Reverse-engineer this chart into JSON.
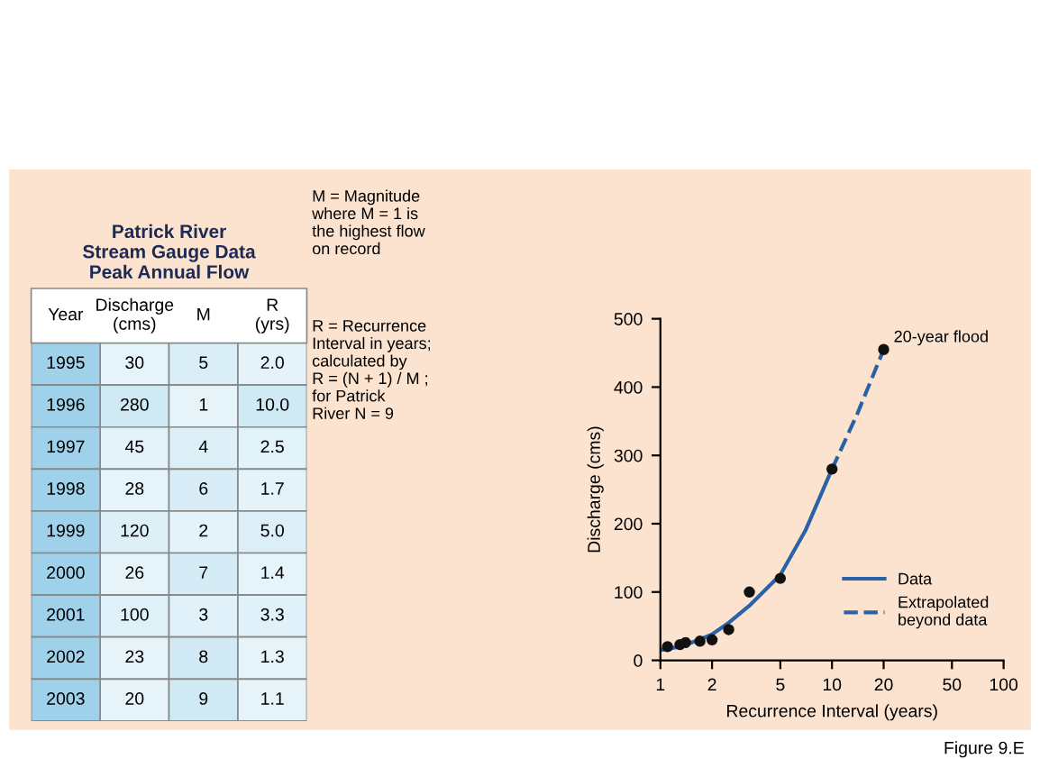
{
  "chart_data": [
    {
      "type": "heatmap",
      "title": "Patrick River\nStream Gauge Data\nPeak Annual Flow",
      "ylabel": "Year",
      "categories": [
        "Discharge\n(cms)",
        "M",
        "R\n(yrs)"
      ],
      "y_categories": [
        "1995",
        "1996",
        "1997",
        "1998",
        "1999",
        "2000",
        "2001",
        "2002",
        "2003"
      ],
      "cells": [
        [
          30,
          5,
          2.0
        ],
        [
          280,
          1,
          10.0
        ],
        [
          45,
          4,
          2.5
        ],
        [
          28,
          6,
          1.7
        ],
        [
          120,
          2,
          5.0
        ],
        [
          26,
          7,
          1.4
        ],
        [
          100,
          3,
          3.3
        ],
        [
          23,
          8,
          1.3
        ],
        [
          20,
          9,
          1.1
        ]
      ],
      "cell_labels": [
        [
          "30",
          "5",
          "2.0"
        ],
        [
          "280",
          "1",
          "10.0"
        ],
        [
          "45",
          "4",
          "2.5"
        ],
        [
          "28",
          "6",
          "1.7"
        ],
        [
          "120",
          "2",
          "5.0"
        ],
        [
          "26",
          "7",
          "1.4"
        ],
        [
          "100",
          "3",
          "3.3"
        ],
        [
          "23",
          "8",
          "1.3"
        ],
        [
          "20",
          "9",
          "1.1"
        ]
      ],
      "data_labels": true,
      "color": "#cfe9f5"
    },
    {
      "type": "other",
      "annotations": [
        "M = Magnitude\nwhere M = 1 is\nthe highest flow\non record",
        "R = Recurrence\nInterval in years;\ncalculated by\nR = (N + 1) / M ;\nfor Patrick\nRiver N = 9"
      ]
    },
    {
      "type": "scatter",
      "xlabel": "Recurrence Interval (years)",
      "ylabel": "Discharge (cms)",
      "log": "x",
      "xlim": [
        1,
        100
      ],
      "xticks": [
        1,
        2,
        5,
        10,
        20,
        50,
        100
      ],
      "ylim": [
        0,
        500
      ],
      "yticks": [
        0,
        100,
        200,
        300,
        400,
        500
      ],
      "grid": false,
      "legend": "bottom right",
      "annotations": [
        {
          "text": "20-year flood",
          "x": 20,
          "y": 455
        },
        "Figure 9.E"
      ],
      "series": [
        {
          "type": "scatter",
          "color": "#111111",
          "marker": "circle",
          "x": [
            1.1,
            1.3,
            1.4,
            1.7,
            2.0,
            2.5,
            3.3,
            5.0,
            10.0,
            20
          ],
          "values": [
            20,
            23,
            26,
            28,
            30,
            45,
            100,
            120,
            280,
            455
          ]
        },
        {
          "type": "line",
          "name": "Data",
          "color": "#2a62a8",
          "line_style": "solid",
          "x": [
            1,
            1.3,
            1.6,
            2,
            2.5,
            3.3,
            5,
            7,
            10
          ],
          "values": [
            15,
            20,
            28,
            38,
            55,
            80,
            125,
            190,
            280
          ]
        },
        {
          "type": "line",
          "name": "Extrapolated\nbeyond data",
          "color": "#2a62a8",
          "line_style": "dashed",
          "x": [
            10,
            14,
            20
          ],
          "values": [
            280,
            360,
            455
          ]
        }
      ]
    }
  ]
}
